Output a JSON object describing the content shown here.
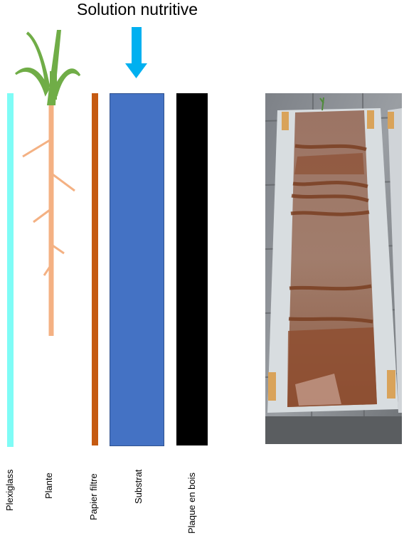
{
  "title": "Solution nutritive",
  "labels": {
    "plexiglass": "Plexiglass",
    "plante": "Plante",
    "papier_filtre": "Papier filtre",
    "substrat": "Substrat",
    "plaque_en_bois": "Plaque en bois"
  },
  "colors": {
    "plexiglass": "#7ffcf6",
    "plant_stem": "#f4b183",
    "plant_leaves": "#70ad47",
    "papier_filtre": "#c55a11",
    "substrat": "#4472c4",
    "plaque_en_bois": "#000000",
    "arrow": "#00b0f0"
  },
  "icons": {
    "arrow": "down-arrow-icon",
    "plant": "plant-icon"
  },
  "photo": {
    "description_icon": "rhizotron-photo"
  }
}
